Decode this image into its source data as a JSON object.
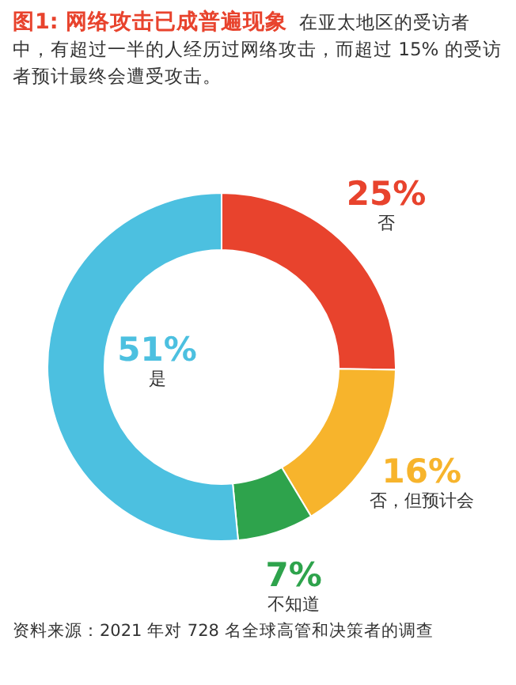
{
  "chart_data": {
    "type": "donut",
    "title": "图1: 网络攻击已成普遍现象",
    "subtitle": "在亚太地区的受访者中，有超过一半的人经历过网络攻击，而超过 15% 的受访者预计最终会遭受攻击。",
    "categories": [
      "否",
      "否，但预计会",
      "不知道",
      "是"
    ],
    "values": [
      25,
      16,
      7,
      51
    ],
    "colors": [
      "#e8432d",
      "#f7b42c",
      "#2ea34c",
      "#4cc0e0"
    ],
    "value_labels": [
      "25%",
      "16%",
      "7%",
      "51%"
    ],
    "annotations": [
      "资料来源：2021 年对 728 名全球高管和决策者的调查"
    ]
  }
}
